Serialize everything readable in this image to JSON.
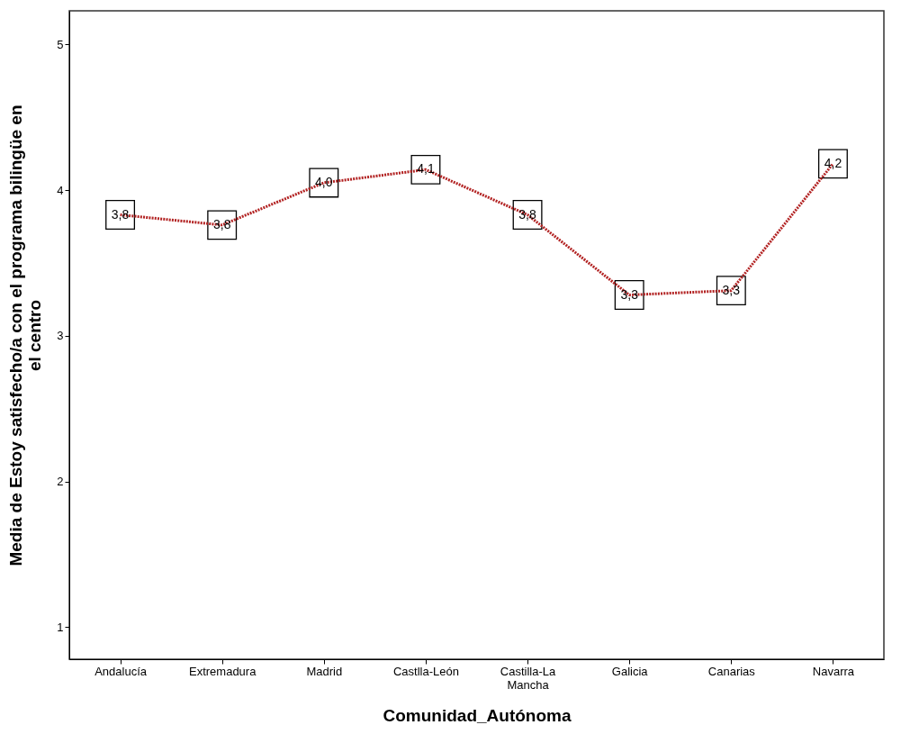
{
  "chart_data": {
    "type": "line",
    "xlabel": "Comunidad_Autónoma",
    "ylabel": "Media de Estoy satisfecho/a con el programa bilingüe en el centro",
    "categories": [
      "Andalucía",
      "Extremadura",
      "Madrid",
      "Castlla-León",
      "Castilla-La Mancha",
      "Galicia",
      "Canarias",
      "Navarra"
    ],
    "series": [
      {
        "color": "#b22222",
        "values": [
          3.83,
          3.76,
          4.05,
          4.14,
          3.83,
          3.28,
          3.31,
          4.18
        ],
        "value_labels": [
          "3,8",
          "3,8",
          "4,0",
          "4,1",
          "3,8",
          "3,3",
          "3,3",
          "4,2"
        ]
      }
    ],
    "ylim": [
      0.78,
      5.23
    ],
    "yticks": [
      1,
      2,
      3,
      4,
      5
    ],
    "grid": false,
    "marker": "square",
    "line_style": "dotted"
  }
}
